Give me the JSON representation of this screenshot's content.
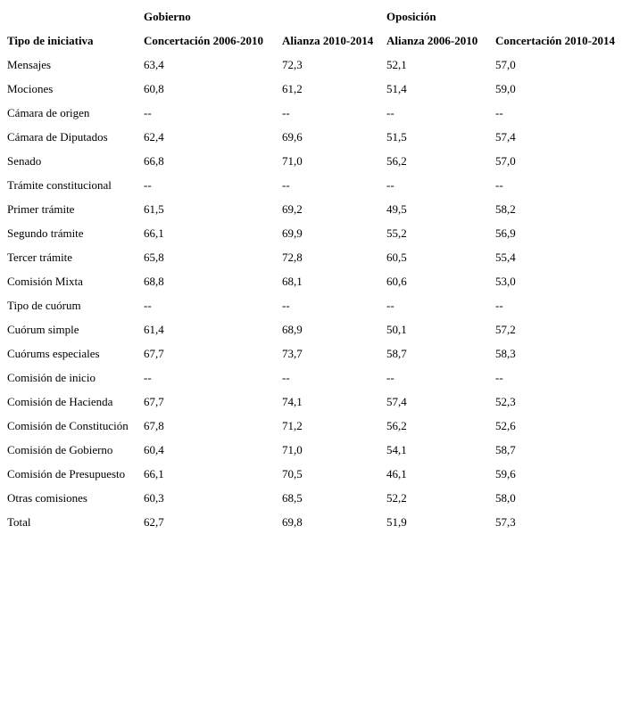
{
  "table": {
    "group_headers": {
      "spacer": "",
      "gobierno": "Gobierno",
      "oposicion": "Oposición"
    },
    "column_headers": [
      "Tipo de iniciativa",
      "Concertación 2006-2010",
      "Alianza 2010-2014",
      "Alianza 2006-2010",
      "Concertación 2010-2014"
    ],
    "rows": [
      {
        "label": "Mensajes",
        "values": [
          "63,4",
          "72,3",
          "52,1",
          "57,0"
        ]
      },
      {
        "label": "Mociones",
        "values": [
          "60,8",
          "61,2",
          "51,4",
          "59,0"
        ]
      },
      {
        "label": "Cámara de origen",
        "values": [
          "--",
          "--",
          "--",
          "--"
        ]
      },
      {
        "label": "Cámara de Diputados",
        "values": [
          "62,4",
          "69,6",
          "51,5",
          "57,4"
        ]
      },
      {
        "label": "Senado",
        "values": [
          "66,8",
          "71,0",
          "56,2",
          "57,0"
        ]
      },
      {
        "label": "Trámite constitucional",
        "values": [
          "--",
          "--",
          "--",
          "--"
        ]
      },
      {
        "label": "Primer trámite",
        "values": [
          "61,5",
          "69,2",
          "49,5",
          "58,2"
        ]
      },
      {
        "label": "Segundo trámite",
        "values": [
          "66,1",
          "69,9",
          "55,2",
          "56,9"
        ]
      },
      {
        "label": "Tercer trámite",
        "values": [
          "65,8",
          "72,8",
          "60,5",
          "55,4"
        ]
      },
      {
        "label": "Comisión Mixta",
        "values": [
          "68,8",
          "68,1",
          "60,6",
          "53,0"
        ]
      },
      {
        "label": "Tipo de cuórum",
        "values": [
          "--",
          "--",
          "--",
          "--"
        ]
      },
      {
        "label": "Cuórum simple",
        "values": [
          "61,4",
          "68,9",
          "50,1",
          "57,2"
        ]
      },
      {
        "label": "Cuórums especiales",
        "values": [
          "67,7",
          "73,7",
          "58,7",
          "58,3"
        ]
      },
      {
        "label": "Comisión de inicio",
        "values": [
          "--",
          "--",
          "--",
          "--"
        ]
      },
      {
        "label": "Comisión de Hacienda",
        "values": [
          "67,7",
          "74,1",
          "57,4",
          "52,3"
        ]
      },
      {
        "label": "Comisión de Constitución",
        "values": [
          "67,8",
          "71,2",
          "56,2",
          "52,6"
        ]
      },
      {
        "label": "Comisión de Gobierno",
        "values": [
          "60,4",
          "71,0",
          "54,1",
          "58,7"
        ]
      },
      {
        "label": "Comisión de Presupuesto",
        "values": [
          "66,1",
          "70,5",
          "46,1",
          "59,6"
        ]
      },
      {
        "label": "Otras comisiones",
        "values": [
          "60,3",
          "68,5",
          "52,2",
          "58,0"
        ]
      },
      {
        "label": "Total",
        "values": [
          "62,7",
          "69,8",
          "51,9",
          "57,3"
        ]
      }
    ]
  },
  "chart_data": {
    "type": "table",
    "title": "",
    "row_header": "Tipo de iniciativa",
    "columns": [
      "Concertación 2006-2010",
      "Alianza 2010-2014",
      "Alianza 2006-2010",
      "Concertación 2010-2014"
    ],
    "column_groups": [
      "Gobierno",
      "Gobierno",
      "Oposición",
      "Oposición"
    ],
    "rows": [
      "Mensajes",
      "Mociones",
      "Cámara de origen",
      "Cámara de Diputados",
      "Senado",
      "Trámite constitucional",
      "Primer trámite",
      "Segundo trámite",
      "Tercer trámite",
      "Comisión Mixta",
      "Tipo de cuórum",
      "Cuórum simple",
      "Cuórums especiales",
      "Comisión de inicio",
      "Comisión de Hacienda",
      "Comisión de Constitución",
      "Comisión de Gobierno",
      "Comisión de Presupuesto",
      "Otras comisiones",
      "Total"
    ],
    "values": [
      [
        63.4,
        72.3,
        52.1,
        57.0
      ],
      [
        60.8,
        61.2,
        51.4,
        59.0
      ],
      [
        null,
        null,
        null,
        null
      ],
      [
        62.4,
        69.6,
        51.5,
        57.4
      ],
      [
        66.8,
        71.0,
        56.2,
        57.0
      ],
      [
        null,
        null,
        null,
        null
      ],
      [
        61.5,
        69.2,
        49.5,
        58.2
      ],
      [
        66.1,
        69.9,
        55.2,
        56.9
      ],
      [
        65.8,
        72.8,
        60.5,
        55.4
      ],
      [
        68.8,
        68.1,
        60.6,
        53.0
      ],
      [
        null,
        null,
        null,
        null
      ],
      [
        61.4,
        68.9,
        50.1,
        57.2
      ],
      [
        67.7,
        73.7,
        58.7,
        58.3
      ],
      [
        null,
        null,
        null,
        null
      ],
      [
        67.7,
        74.1,
        57.4,
        52.3
      ],
      [
        67.8,
        71.2,
        56.2,
        52.6
      ],
      [
        60.4,
        71.0,
        54.1,
        58.7
      ],
      [
        66.1,
        70.5,
        46.1,
        59.6
      ],
      [
        60.3,
        68.5,
        52.2,
        58.0
      ],
      [
        62.7,
        69.8,
        51.9,
        57.3
      ]
    ]
  }
}
